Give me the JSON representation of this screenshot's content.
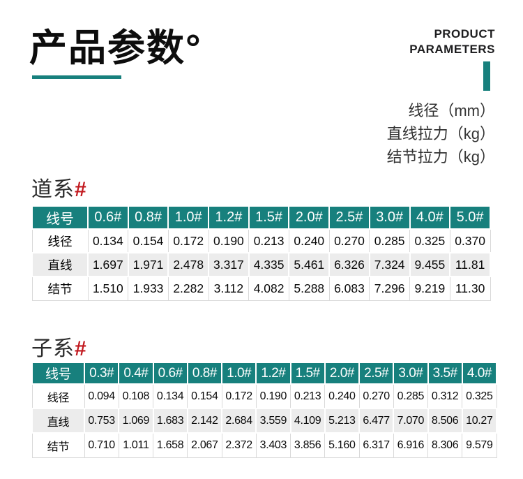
{
  "colors": {
    "accent_teal": "#17807D",
    "hash_red": "#C2191F",
    "stripe_gray": "#ECECEC",
    "cell_border": "#D9D9D9"
  },
  "header": {
    "title": "产品参数°",
    "subtitle_en_line1": "PRODUCT",
    "subtitle_en_line2": "PARAMETERS"
  },
  "units": {
    "line1": "线径（mm）",
    "line2": "直线拉力（kg）",
    "line3": "结节拉力（kg）"
  },
  "tables": [
    {
      "heading": "道系",
      "hash": "#",
      "corner_label": "线号",
      "columns": [
        "0.6#",
        "0.8#",
        "1.0#",
        "1.2#",
        "1.5#",
        "2.0#",
        "2.5#",
        "3.0#",
        "4.0#",
        "5.0#"
      ],
      "rows": [
        {
          "label": "线径",
          "values": [
            "0.134",
            "0.154",
            "0.172",
            "0.190",
            "0.213",
            "0.240",
            "0.270",
            "0.285",
            "0.325",
            "0.370"
          ]
        },
        {
          "label": "直线",
          "values": [
            "1.697",
            "1.971",
            "2.478",
            "3.317",
            "4.335",
            "5.461",
            "6.326",
            "7.324",
            "9.455",
            "11.81"
          ]
        },
        {
          "label": "结节",
          "values": [
            "1.510",
            "1.933",
            "2.282",
            "3.112",
            "4.082",
            "5.288",
            "6.083",
            "7.296",
            "9.219",
            "11.30"
          ]
        }
      ]
    },
    {
      "heading": "子系",
      "hash": "#",
      "corner_label": "线号",
      "columns": [
        "0.3#",
        "0.4#",
        "0.6#",
        "0.8#",
        "1.0#",
        "1.2#",
        "1.5#",
        "2.0#",
        "2.5#",
        "3.0#",
        "3.5#",
        "4.0#"
      ],
      "rows": [
        {
          "label": "线径",
          "values": [
            "0.094",
            "0.108",
            "0.134",
            "0.154",
            "0.172",
            "0.190",
            "0.213",
            "0.240",
            "0.270",
            "0.285",
            "0.312",
            "0.325"
          ]
        },
        {
          "label": "直线",
          "values": [
            "0.753",
            "1.069",
            "1.683",
            "2.142",
            "2.684",
            "3.559",
            "4.109",
            "5.213",
            "6.477",
            "7.070",
            "8.506",
            "10.27"
          ]
        },
        {
          "label": "结节",
          "values": [
            "0.710",
            "1.011",
            "1.658",
            "2.067",
            "2.372",
            "3.403",
            "3.856",
            "5.160",
            "6.317",
            "6.916",
            "8.306",
            "9.579"
          ]
        }
      ]
    }
  ]
}
